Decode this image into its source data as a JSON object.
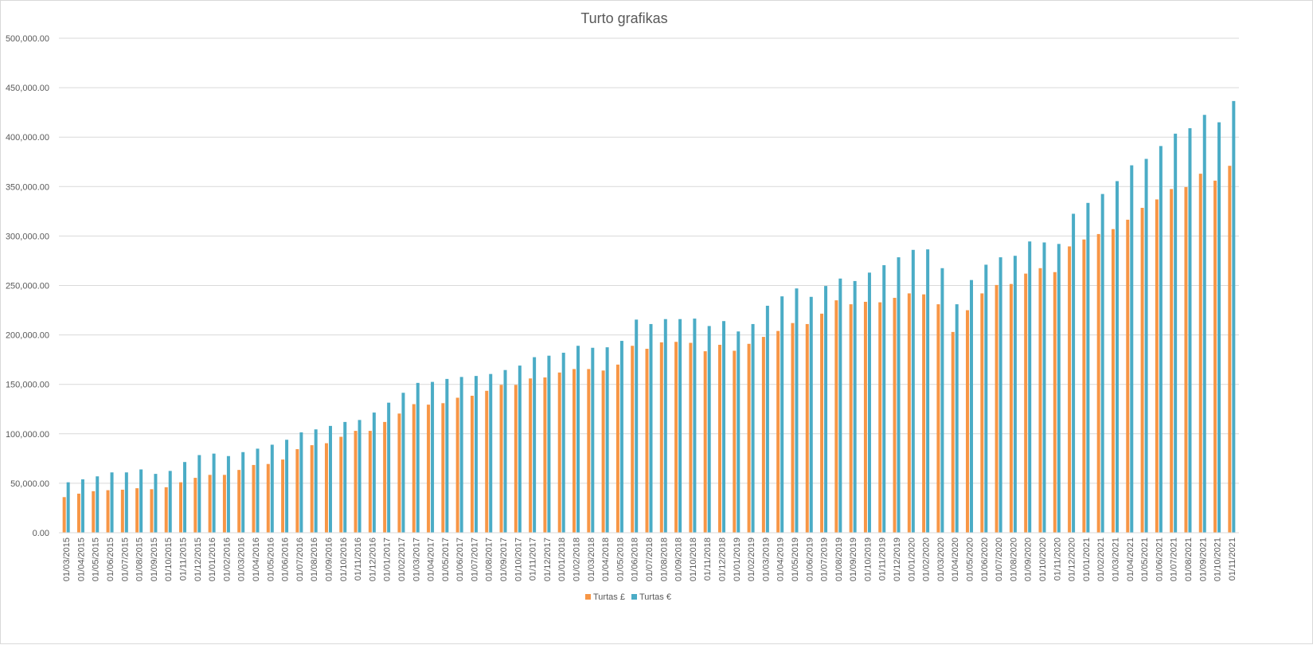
{
  "chart_data": {
    "type": "bar",
    "title": "Turto grafikas",
    "xlabel": "",
    "ylabel": "",
    "ylim": [
      0,
      500000
    ],
    "yticks": [
      "0.00",
      "50,000.00",
      "100,000.00",
      "150,000.00",
      "200,000.00",
      "250,000.00",
      "300,000.00",
      "350,000.00",
      "400,000.00",
      "450,000.00",
      "500,000.00"
    ],
    "grid": true,
    "legend_position": "bottom",
    "categories": [
      "01/03/2015",
      "01/04/2015",
      "01/05/2015",
      "01/06/2015",
      "01/07/2015",
      "01/08/2015",
      "01/09/2015",
      "01/10/2015",
      "01/11/2015",
      "01/12/2015",
      "01/01/2016",
      "01/02/2016",
      "01/03/2016",
      "01/04/2016",
      "01/05/2016",
      "01/06/2016",
      "01/07/2016",
      "01/08/2016",
      "01/09/2016",
      "01/10/2016",
      "01/11/2016",
      "01/12/2016",
      "01/01/2017",
      "01/02/2017",
      "01/03/2017",
      "01/04/2017",
      "01/05/2017",
      "01/06/2017",
      "01/07/2017",
      "01/08/2017",
      "01/09/2017",
      "01/10/2017",
      "01/11/2017",
      "01/12/2017",
      "01/01/2018",
      "01/02/2018",
      "01/03/2018",
      "01/04/2018",
      "01/05/2018",
      "01/06/2018",
      "01/07/2018",
      "01/08/2018",
      "01/09/2018",
      "01/10/2018",
      "01/11/2018",
      "01/12/2018",
      "01/01/2019",
      "01/02/2019",
      "01/03/2019",
      "01/04/2019",
      "01/05/2019",
      "01/06/2019",
      "01/07/2019",
      "01/08/2019",
      "01/09/2019",
      "01/10/2019",
      "01/11/2019",
      "01/12/2019",
      "01/01/2020",
      "01/02/2020",
      "01/03/2020",
      "01/04/2020",
      "01/05/2020",
      "01/06/2020",
      "01/07/2020",
      "01/08/2020",
      "01/09/2020",
      "01/10/2020",
      "01/11/2020",
      "01/12/2020",
      "01/01/2021",
      "01/02/2021",
      "01/03/2021",
      "01/04/2021",
      "01/05/2021",
      "01/06/2021",
      "01/07/2021",
      "01/08/2021",
      "01/09/2021",
      "01/10/2021",
      "01/11/2021"
    ],
    "series": [
      {
        "name": "Turtas £",
        "color": "#f79646",
        "values": [
          36000,
          39500,
          42000,
          43000,
          43500,
          45000,
          44000,
          46000,
          51000,
          55500,
          58500,
          58500,
          63500,
          68500,
          69500,
          74000,
          84500,
          88500,
          90500,
          97000,
          103000,
          103000,
          112000,
          120500,
          130000,
          129500,
          131000,
          136500,
          138500,
          143500,
          149500,
          149500,
          156000,
          157000,
          162000,
          165500,
          165500,
          164000,
          170000,
          189000,
          186000,
          192500,
          193000,
          192000,
          183500,
          190000,
          184000,
          191000,
          198000,
          204000,
          212000,
          211000,
          221500,
          235000,
          231000,
          233500,
          233000,
          237500,
          242000,
          241000,
          231000,
          203000,
          225000,
          242000,
          250500,
          251500,
          262000,
          267500,
          263500,
          289500,
          296500,
          302000,
          307000,
          316500,
          328500,
          337000,
          347500,
          349500,
          363000,
          356000,
          371000
        ]
      },
      {
        "name": "Turtas €",
        "color": "#4bacc6",
        "values": [
          51000,
          54000,
          57000,
          61000,
          61000,
          64000,
          59500,
          62500,
          71500,
          78500,
          80000,
          77500,
          81500,
          85000,
          89000,
          94000,
          101500,
          104500,
          108000,
          112000,
          114000,
          121500,
          131500,
          141500,
          151500,
          152500,
          155500,
          157500,
          158500,
          160500,
          164500,
          169000,
          177500,
          179000,
          182000,
          189000,
          187000,
          187500,
          194000,
          215500,
          211000,
          216000,
          216000,
          216500,
          209000,
          214000,
          203500,
          211000,
          229500,
          239000,
          247000,
          238500,
          249500,
          257000,
          254500,
          263000,
          270500,
          278500,
          286000,
          286500,
          267500,
          231000,
          255500,
          271000,
          278500,
          280000,
          294500,
          293500,
          292000,
          322500,
          333500,
          342500,
          355500,
          371500,
          378000,
          391000,
          403500,
          409000,
          422500,
          415000,
          436500
        ]
      }
    ]
  }
}
